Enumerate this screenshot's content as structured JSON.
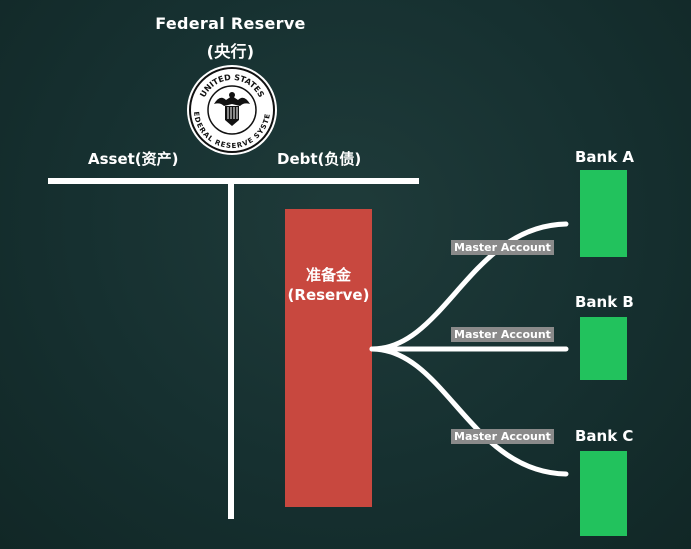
{
  "central_bank": {
    "title": "Federal Reserve",
    "subtitle": "(央行)",
    "seal_top_text": "UNITED STATES",
    "seal_bottom_text": "FEDERAL RESERVE SYSTEM"
  },
  "balance_sheet": {
    "asset_label": "Asset(资产)",
    "debt_label": "Debt(负债)"
  },
  "reserve": {
    "label_cn": "准备金",
    "label_en": "(Reserve)",
    "color": "#c8483f"
  },
  "connections": [
    {
      "tag": "Master Account"
    },
    {
      "tag": "Master Account"
    },
    {
      "tag": "Master Account"
    }
  ],
  "banks": [
    {
      "name": "Bank A",
      "color": "#22c25d"
    },
    {
      "name": "Bank B",
      "color": "#22c25d"
    },
    {
      "name": "Bank C",
      "color": "#22c25d"
    }
  ]
}
